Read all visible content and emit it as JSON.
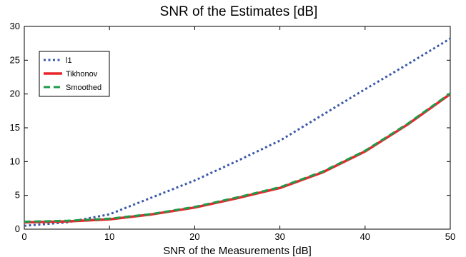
{
  "chart_data": {
    "type": "line",
    "title": "SNR of the Estimates [dB]",
    "xlabel": "SNR of the Measurements [dB]",
    "ylabel": "",
    "xlim": [
      0,
      50
    ],
    "ylim": [
      0,
      30
    ],
    "xticks": [
      "0",
      "10",
      "20",
      "30",
      "40",
      "50"
    ],
    "yticks": [
      "0",
      "5",
      "10",
      "15",
      "20",
      "25",
      "30"
    ],
    "grid": false,
    "legend_position": "top-left",
    "series": [
      {
        "name": "l1",
        "color": "#3a58a8",
        "style": "dotted",
        "x": [
          0,
          5,
          10,
          15,
          20,
          25,
          30,
          35,
          40,
          45,
          50
        ],
        "y": [
          0.5,
          1.0,
          2.2,
          4.7,
          7.2,
          10.1,
          13.1,
          16.9,
          20.7,
          24.4,
          28.2
        ]
      },
      {
        "name": "Tikhonov",
        "color": "#e8262b",
        "style": "solid",
        "x": [
          0,
          5,
          10,
          15,
          20,
          25,
          30,
          35,
          40,
          45,
          50
        ],
        "y": [
          1.0,
          1.15,
          1.45,
          2.2,
          3.2,
          4.6,
          6.1,
          8.4,
          11.5,
          15.5,
          20.0
        ]
      },
      {
        "name": "Smoothed",
        "color": "#1e9a4a",
        "style": "dashed",
        "x": [
          0,
          5,
          10,
          15,
          20,
          25,
          30,
          35,
          40,
          45,
          50
        ],
        "y": [
          1.1,
          1.25,
          1.55,
          2.25,
          3.3,
          4.7,
          6.2,
          8.5,
          11.6,
          15.6,
          20.1
        ]
      }
    ]
  }
}
